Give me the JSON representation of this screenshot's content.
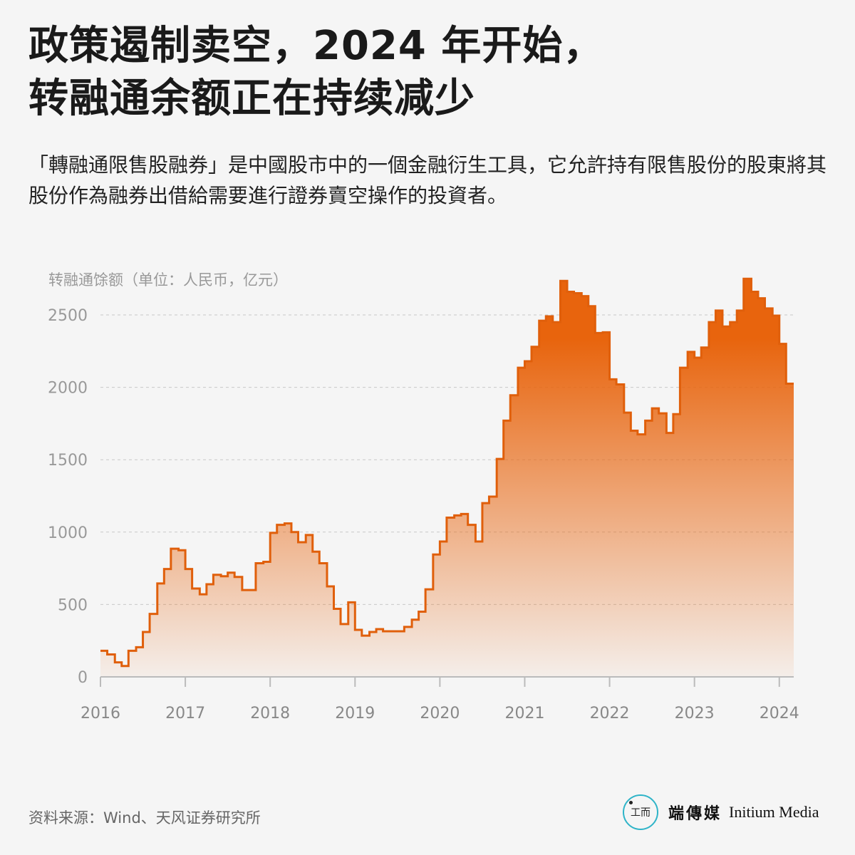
{
  "headline": {
    "line1": "政策遏制卖空，2024 年开始，",
    "line2": "转融通余额正在持续减少"
  },
  "subtitle": "「轉融通限售股融券」是中國股市中的一個金融衍生工具，它允許持有限售股份的股東將其股份作為融券出借給需要進行證券賣空操作的投資者。",
  "source": "资料来源：Wind、天风证券研究所",
  "brand": {
    "logo_text": "工而",
    "name_cn": "端傳媒",
    "name_en": "Initium Media"
  },
  "colors": {
    "line": "#e05f0b",
    "fill_top": "#e8640d",
    "grid": "#c8c8c8",
    "axis_text": "#999999"
  },
  "chart_data": {
    "type": "area",
    "step": true,
    "ylabel": "转融通馀额（单位：人民币，亿元）",
    "yticks": [
      0,
      500,
      1000,
      1500,
      2000,
      2500
    ],
    "ylim": [
      0,
      2700
    ],
    "xticks": [
      "2016",
      "2017",
      "2018",
      "2019",
      "2020",
      "2021",
      "2022",
      "2023",
      "2024"
    ],
    "xlim": [
      2016,
      2024.17
    ],
    "grid": true,
    "series": [
      {
        "x": [
          2016.0,
          2016.08,
          2016.17,
          2016.25,
          2016.33,
          2016.42,
          2016.5,
          2016.58,
          2016.67,
          2016.75,
          2016.83,
          2016.92,
          2017.0,
          2017.08,
          2017.17,
          2017.25,
          2017.33,
          2017.42,
          2017.5,
          2017.58,
          2017.67,
          2017.75,
          2017.83,
          2017.92,
          2018.0,
          2018.08,
          2018.17,
          2018.25,
          2018.33,
          2018.42,
          2018.5,
          2018.58,
          2018.67,
          2018.75,
          2018.83,
          2018.92,
          2019.0,
          2019.08,
          2019.17,
          2019.25,
          2019.33,
          2019.42,
          2019.5,
          2019.58,
          2019.67,
          2019.75,
          2019.83,
          2019.92,
          2020.0,
          2020.08,
          2020.17,
          2020.25,
          2020.33,
          2020.42,
          2020.5,
          2020.58,
          2020.67,
          2020.75,
          2020.83,
          2020.92,
          2021.0,
          2021.08,
          2021.17,
          2021.25,
          2021.33,
          2021.42,
          2021.5,
          2021.58,
          2021.67,
          2021.75,
          2021.83,
          2021.92,
          2022.0,
          2022.08,
          2022.17,
          2022.25,
          2022.33,
          2022.42,
          2022.5,
          2022.58,
          2022.67,
          2022.75,
          2022.83,
          2022.92,
          2023.0,
          2023.08,
          2023.17,
          2023.25,
          2023.33,
          2023.42,
          2023.5,
          2023.58,
          2023.67,
          2023.75,
          2023.83,
          2023.92,
          2024.0,
          2024.08
        ],
        "values": [
          180,
          155,
          100,
          75,
          180,
          205,
          310,
          435,
          645,
          745,
          885,
          875,
          745,
          610,
          570,
          640,
          705,
          695,
          720,
          690,
          600,
          600,
          785,
          795,
          995,
          1050,
          1060,
          1000,
          930,
          980,
          865,
          785,
          625,
          470,
          365,
          515,
          325,
          285,
          310,
          330,
          315,
          315,
          315,
          345,
          395,
          450,
          605,
          845,
          935,
          1100,
          1115,
          1125,
          1050,
          935,
          1200,
          1245,
          1505,
          1770,
          1945,
          2135,
          2180,
          2280,
          2460,
          2490,
          2450,
          2735,
          2660,
          2650,
          2630,
          2560,
          2375,
          2380,
          2055,
          2020,
          1825,
          1700,
          1675,
          1770,
          1855,
          1820,
          1685,
          1815,
          2135,
          2245,
          2205,
          2275,
          2450,
          2530,
          2420,
          2450,
          2530,
          2750,
          2660,
          2615,
          2545,
          2495,
          2300,
          2025
        ]
      }
    ]
  }
}
